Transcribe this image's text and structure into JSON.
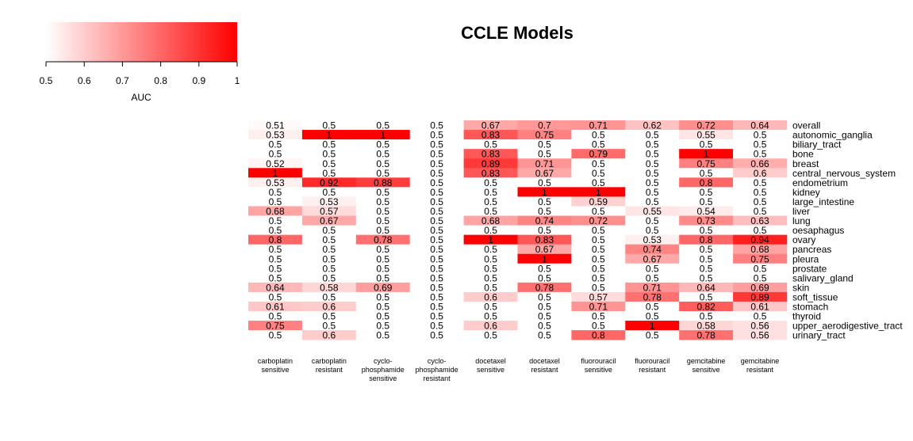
{
  "chart_data": {
    "type": "heatmap",
    "title": "CCLE Models",
    "colorbar": {
      "label": "AUC",
      "range": [
        0.5,
        1
      ],
      "ticks": [
        "0.5",
        "0.6",
        "0.7",
        "0.8",
        "0.9",
        "1"
      ],
      "color_low": "#ffffff",
      "color_high": "#ff0000"
    },
    "columns": [
      [
        "carboplatin",
        "sensitive"
      ],
      [
        "carboplatin",
        "resistant"
      ],
      [
        "cyclo-",
        "phosphamide",
        "sensitive"
      ],
      [
        "cyclo-",
        "phosphamide",
        "resistant"
      ],
      [
        "docetaxel",
        "sensitive"
      ],
      [
        "docetaxel",
        "resistant"
      ],
      [
        "fluorouracil",
        "sensitive"
      ],
      [
        "fluorouracil",
        "resistant"
      ],
      [
        "gemcitabine",
        "sensitive"
      ],
      [
        "gemcitabine",
        "resistant"
      ]
    ],
    "rows": [
      "overall",
      "autonomic_ganglia",
      "biliary_tract",
      "bone",
      "breast",
      "central_nervous_system",
      "endometrium",
      "kidney",
      "large_intestine",
      "liver",
      "lung",
      "oesaphagus",
      "ovary",
      "pancreas",
      "pleura",
      "prostate",
      "salivary_gland",
      "skin",
      "soft_tissue",
      "stomach",
      "thyroid",
      "upper_aerodigestive_tract",
      "urinary_tract"
    ],
    "values": [
      [
        0.51,
        0.5,
        0.5,
        0.5,
        0.67,
        0.7,
        0.71,
        0.62,
        0.72,
        0.64
      ],
      [
        0.53,
        1,
        1,
        0.5,
        0.83,
        0.75,
        0.5,
        0.5,
        0.55,
        0.5
      ],
      [
        0.5,
        0.5,
        0.5,
        0.5,
        0.5,
        0.5,
        0.5,
        0.5,
        0.5,
        0.5
      ],
      [
        0.5,
        0.5,
        0.5,
        0.5,
        0.83,
        0.5,
        0.79,
        0.5,
        1,
        0.5
      ],
      [
        0.52,
        0.5,
        0.5,
        0.5,
        0.89,
        0.71,
        0.5,
        0.5,
        0.75,
        0.66
      ],
      [
        1,
        0.5,
        0.5,
        0.5,
        0.83,
        0.67,
        0.5,
        0.5,
        0.5,
        0.6
      ],
      [
        0.53,
        0.92,
        0.88,
        0.5,
        0.5,
        0.5,
        0.5,
        0.5,
        0.8,
        0.5
      ],
      [
        0.5,
        0.5,
        0.5,
        0.5,
        0.5,
        1,
        1,
        0.5,
        0.5,
        0.5
      ],
      [
        0.5,
        0.53,
        0.5,
        0.5,
        0.5,
        0.5,
        0.59,
        0.5,
        0.5,
        0.5
      ],
      [
        0.68,
        0.57,
        0.5,
        0.5,
        0.5,
        0.5,
        0.5,
        0.55,
        0.54,
        0.5
      ],
      [
        0.5,
        0.67,
        0.5,
        0.5,
        0.68,
        0.74,
        0.72,
        0.5,
        0.73,
        0.63
      ],
      [
        0.5,
        0.5,
        0.5,
        0.5,
        0.5,
        0.5,
        0.5,
        0.5,
        0.5,
        0.5
      ],
      [
        0.8,
        0.5,
        0.78,
        0.5,
        1,
        0.83,
        0.5,
        0.53,
        0.8,
        0.94
      ],
      [
        0.5,
        0.5,
        0.5,
        0.5,
        0.5,
        0.67,
        0.5,
        0.74,
        0.5,
        0.68
      ],
      [
        0.5,
        0.5,
        0.5,
        0.5,
        0.5,
        1,
        0.5,
        0.67,
        0.5,
        0.75
      ],
      [
        0.5,
        0.5,
        0.5,
        0.5,
        0.5,
        0.5,
        0.5,
        0.5,
        0.5,
        0.5
      ],
      [
        0.5,
        0.5,
        0.5,
        0.5,
        0.5,
        0.5,
        0.5,
        0.5,
        0.5,
        0.5
      ],
      [
        0.64,
        0.58,
        0.69,
        0.5,
        0.5,
        0.78,
        0.5,
        0.71,
        0.64,
        0.69
      ],
      [
        0.5,
        0.5,
        0.5,
        0.5,
        0.6,
        0.5,
        0.57,
        0.78,
        0.5,
        0.89
      ],
      [
        0.61,
        0.6,
        0.5,
        0.5,
        0.5,
        0.5,
        0.71,
        0.5,
        0.82,
        0.61
      ],
      [
        0.5,
        0.5,
        0.5,
        0.5,
        0.5,
        0.5,
        0.5,
        0.5,
        0.5,
        0.5
      ],
      [
        0.75,
        0.5,
        0.5,
        0.5,
        0.6,
        0.5,
        0.5,
        1,
        0.58,
        0.56
      ],
      [
        0.5,
        0.6,
        0.5,
        0.5,
        0.5,
        0.5,
        0.8,
        0.5,
        0.78,
        0.56
      ]
    ]
  }
}
